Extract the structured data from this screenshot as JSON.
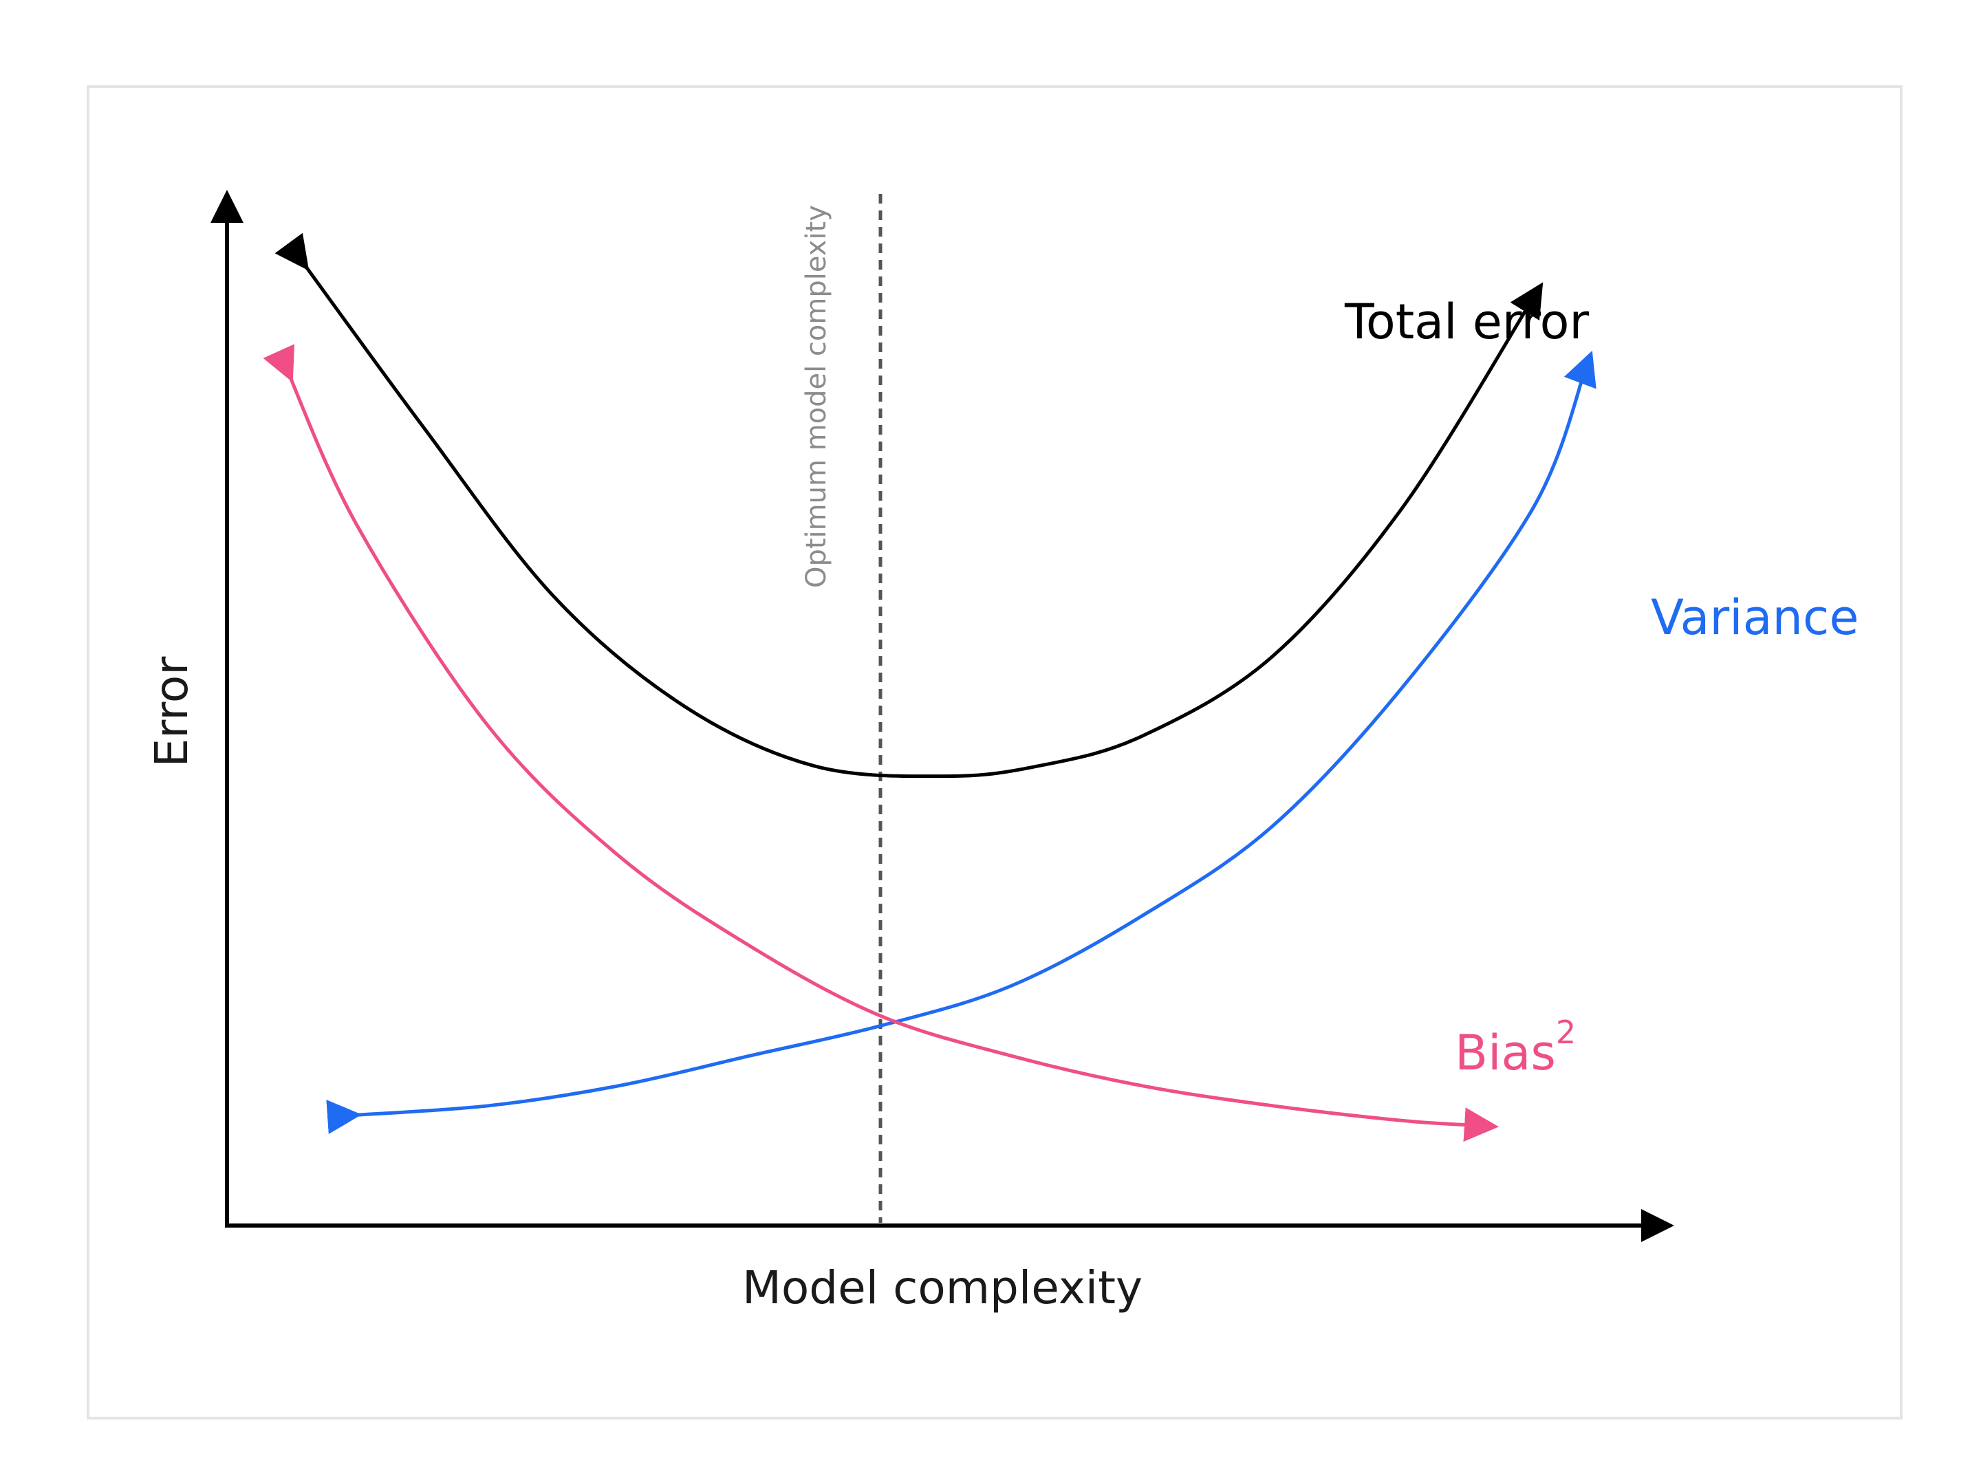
{
  "chart_data": {
    "type": "line",
    "xlabel": "Model complexity",
    "ylabel": "Error",
    "xlim": [
      0,
      10
    ],
    "ylim": [
      0,
      10
    ],
    "grid": false,
    "legend": "none",
    "series": [
      {
        "name": "Total error",
        "color": "#000000",
        "x": [
          0.55,
          1.5,
          2.5,
          3.5,
          4.5,
          5.5,
          6.2,
          7,
          8,
          9,
          10
        ],
        "y": [
          9.7,
          8.0,
          6.3,
          5.2,
          4.6,
          4.5,
          4.6,
          4.9,
          5.7,
          7.2,
          9.3
        ]
      },
      {
        "name": "Variance",
        "color": "#1f6bf2",
        "x": [
          0.9,
          2,
          3,
          4,
          5,
          6,
          7,
          8,
          9,
          10,
          10.4
        ],
        "y": [
          1.1,
          1.2,
          1.4,
          1.7,
          2.0,
          2.4,
          3.1,
          4.0,
          5.4,
          7.2,
          8.6
        ]
      },
      {
        "name": "Bias",
        "name_superscript": "2",
        "color": "#ef4f86",
        "x": [
          0.45,
          1,
          2,
          3,
          4,
          5,
          6,
          7,
          8,
          9,
          9.6
        ],
        "y": [
          8.6,
          7.0,
          5.0,
          3.7,
          2.8,
          2.1,
          1.7,
          1.4,
          1.2,
          1.05,
          1.0
        ]
      }
    ],
    "annotations": [
      {
        "type": "vertical-dashed-line",
        "x": 5.0,
        "text": "Optimum model complexity"
      }
    ]
  }
}
